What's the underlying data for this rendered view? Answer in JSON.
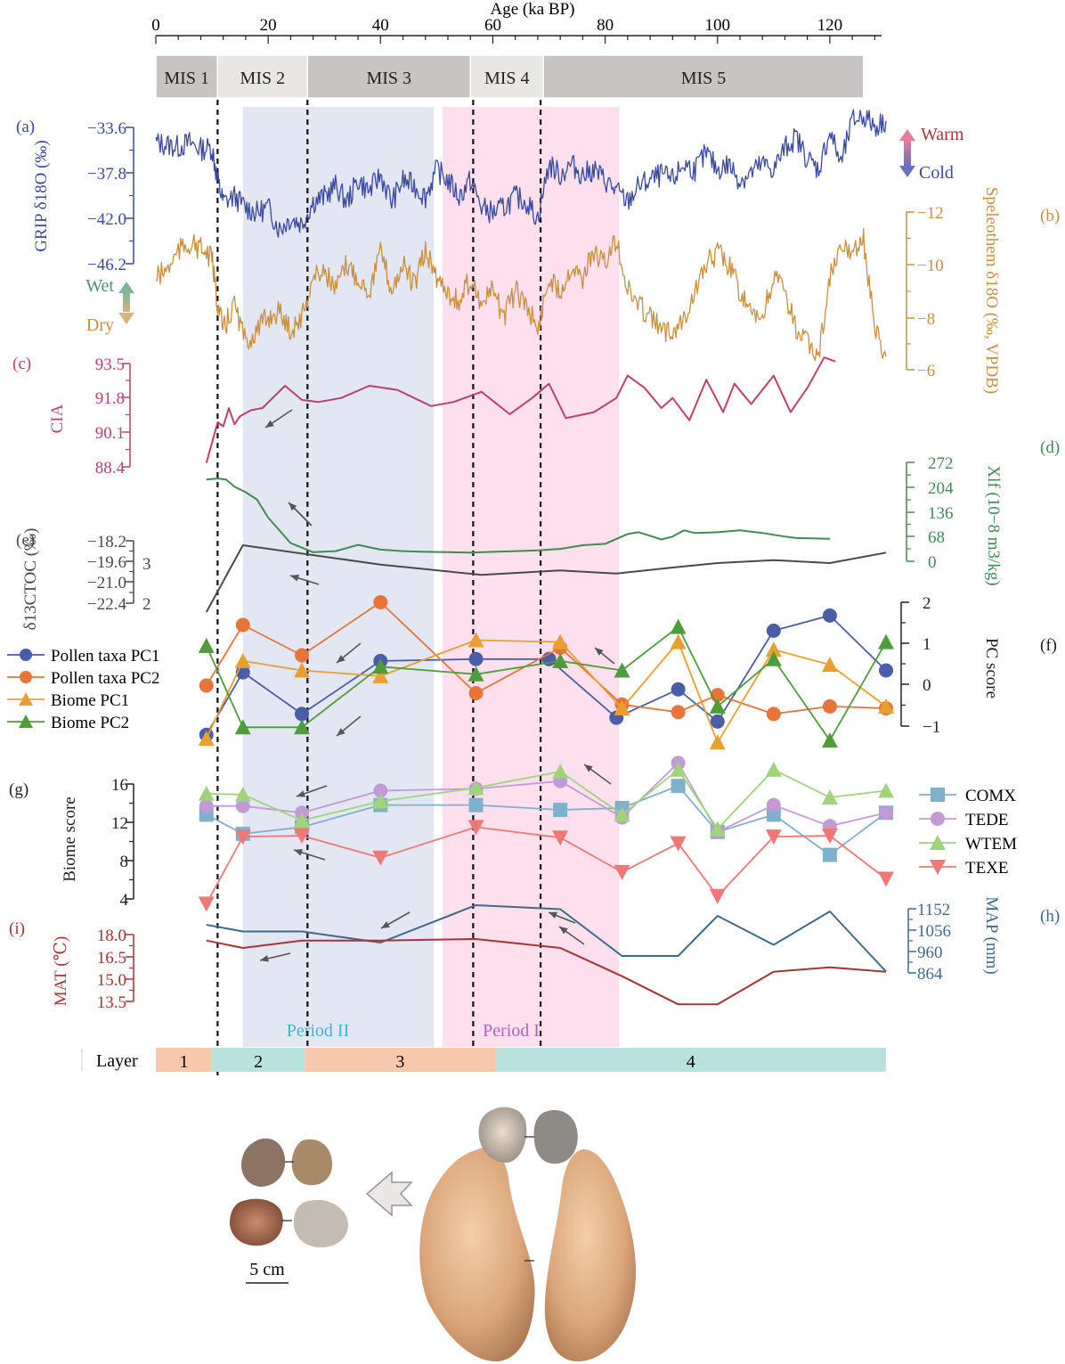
{
  "figure": {
    "age_axis": {
      "label": "Age (ka BP)",
      "ticks": [
        0,
        20,
        40,
        60,
        80,
        100,
        120
      ],
      "range": [
        0,
        130
      ]
    },
    "mis": [
      {
        "label": "MIS 1",
        "from": 0,
        "to": 11,
        "color": "#c8c4c4"
      },
      {
        "label": "MIS 2",
        "from": 11,
        "to": 27,
        "color": "#e9e6e6"
      },
      {
        "label": "MIS 3",
        "from": 27,
        "to": 56,
        "color": "#c8c4c4"
      },
      {
        "label": "MIS 4",
        "from": 56,
        "to": 69,
        "color": "#e9e6e6"
      },
      {
        "label": "MIS 5",
        "from": 69,
        "to": 126,
        "color": "#c8c4c4"
      }
    ],
    "dashed_ages": [
      11,
      27,
      56.5,
      68.5
    ],
    "periods": [
      {
        "label": "Period II",
        "from": 15.5,
        "to": 49.5,
        "color": "#e3e6f3",
        "text_color": "#3fb6d6"
      },
      {
        "label": "Period I",
        "from": 51,
        "to": 82.5,
        "color": "#fce0ee",
        "text_color": "#b066b5"
      }
    ],
    "layers": {
      "title": "Layer",
      "items": [
        {
          "label": "1",
          "from": 0,
          "to": 10,
          "color": "#f8c8ad"
        },
        {
          "label": "2",
          "from": 10,
          "to": 26.5,
          "color": "#b9e2dd"
        },
        {
          "label": "3",
          "from": 26.5,
          "to": 60.5,
          "color": "#f8c8ad"
        },
        {
          "label": "4",
          "from": 60.5,
          "to": 130,
          "color": "#b9e2dd"
        }
      ]
    },
    "warm_cold": {
      "warm": "Warm",
      "cold": "Cold"
    },
    "wet_dry": {
      "wet": "Wet",
      "dry": "Dry"
    },
    "scale_bar": "5 cm"
  },
  "chart_data": [
    {
      "id": "a",
      "panel": "(a)",
      "type": "line",
      "color": "#3a4aa0",
      "ylabel": "GRIP δ18O (‰)",
      "yticks": [
        "−33.6",
        "−37.8",
        "−42.0",
        "−46.2"
      ],
      "ylim": [
        -46.2,
        -33.6
      ],
      "x": [
        0,
        2,
        4,
        6,
        8,
        10,
        11,
        12,
        14,
        16,
        18,
        20,
        22,
        24,
        26,
        28,
        30,
        32,
        34,
        36,
        38,
        40,
        42,
        44,
        46,
        48,
        50,
        52,
        54,
        56,
        58,
        60,
        62,
        64,
        66,
        68,
        70,
        72,
        74,
        76,
        78,
        80,
        82,
        84,
        86,
        88,
        90,
        92,
        94,
        96,
        98,
        100,
        102,
        104,
        106,
        108,
        110,
        112,
        114,
        116,
        118,
        120,
        122,
        124,
        126,
        128,
        130
      ],
      "y": [
        -35.0,
        -35.2,
        -35.4,
        -35.0,
        -35.6,
        -35.5,
        -38.5,
        -40.5,
        -40.0,
        -41.0,
        -41.5,
        -41.0,
        -43.0,
        -42.0,
        -42.5,
        -40.5,
        -40.0,
        -39.0,
        -40.5,
        -38.5,
        -39.5,
        -38.0,
        -40.5,
        -38.5,
        -39.0,
        -40.0,
        -37.5,
        -38.5,
        -40.0,
        -38.5,
        -41.0,
        -41.5,
        -41.0,
        -40.0,
        -40.5,
        -42.0,
        -37.0,
        -38.0,
        -37.0,
        -38.0,
        -37.5,
        -38.5,
        -39.5,
        -40.5,
        -39.0,
        -38.5,
        -38.0,
        -38.5,
        -37.0,
        -37.5,
        -36.0,
        -37.5,
        -37.0,
        -38.5,
        -37.8,
        -37.0,
        -37.5,
        -35.5,
        -34.5,
        -36.5,
        -37.5,
        -34.0,
        -37.0,
        -33.0,
        -32.5,
        -33.5,
        -33.0
      ]
    },
    {
      "id": "b",
      "panel": "(b)",
      "type": "line",
      "color": "#c89040",
      "ylabel": "Speleothem δ18O (‰, VPDB)",
      "yticks": [
        "−12",
        "−10",
        "−8",
        "−6"
      ],
      "ylim": [
        -12,
        -6
      ],
      "reversed": true,
      "x": [
        0,
        2,
        4,
        6,
        8,
        10,
        11,
        12,
        14,
        16,
        18,
        20,
        22,
        24,
        26,
        28,
        30,
        32,
        34,
        36,
        38,
        40,
        42,
        44,
        46,
        48,
        50,
        52,
        54,
        56,
        58,
        60,
        62,
        64,
        66,
        68,
        70,
        72,
        74,
        76,
        78,
        80,
        82,
        84,
        86,
        88,
        90,
        92,
        94,
        96,
        98,
        100,
        102,
        104,
        106,
        108,
        110,
        112,
        114,
        116,
        118,
        120,
        122,
        124,
        126,
        128,
        130
      ],
      "y": [
        -9.5,
        -9.8,
        -10.5,
        -10.8,
        -10.6,
        -10.2,
        -8.5,
        -7.5,
        -8.5,
        -7.0,
        -7.5,
        -8.0,
        -8.2,
        -7.5,
        -8.0,
        -9.5,
        -9.8,
        -9.0,
        -10.0,
        -9.5,
        -9.0,
        -10.5,
        -9.0,
        -10.0,
        -9.2,
        -10.5,
        -9.5,
        -9.0,
        -8.5,
        -9.5,
        -8.5,
        -9.0,
        -8.0,
        -9.0,
        -8.5,
        -7.5,
        -9.5,
        -9.0,
        -10.0,
        -9.5,
        -10.5,
        -10.0,
        -11.0,
        -9.0,
        -8.5,
        -8.0,
        -7.5,
        -7.5,
        -8.0,
        -9.0,
        -10.0,
        -10.5,
        -10.0,
        -9.0,
        -8.0,
        -8.0,
        -9.5,
        -9.0,
        -7.5,
        -7.0,
        -6.5,
        -9.5,
        -10.5,
        -10.5,
        -11.0,
        -7.5,
        -6.5
      ]
    },
    {
      "id": "c",
      "panel": "(c)",
      "type": "line",
      "color": "#c0406a",
      "ylabel": "CIA",
      "yticks": [
        "93.5",
        "91.8",
        "90.1",
        "88.4"
      ],
      "ylim": [
        88.4,
        93.5
      ],
      "x": [
        9,
        11,
        12,
        13,
        14,
        15,
        17,
        19,
        23,
        26,
        29,
        33,
        38,
        43,
        49,
        53,
        58,
        63,
        67,
        70,
        73,
        78,
        82,
        84,
        87,
        90,
        92,
        95,
        98,
        101,
        103,
        106,
        110,
        113,
        116,
        119,
        121
      ],
      "y": [
        88.6,
        90.6,
        90.4,
        91.3,
        90.5,
        90.9,
        91.2,
        91.3,
        92.4,
        91.7,
        91.6,
        91.8,
        92.4,
        92.2,
        91.4,
        91.6,
        92.1,
        91.0,
        91.8,
        92.5,
        90.8,
        91.1,
        91.8,
        92.9,
        92.3,
        91.3,
        91.8,
        90.7,
        92.7,
        91.1,
        92.5,
        91.5,
        92.9,
        91.1,
        92.3,
        93.8,
        93.6
      ]
    },
    {
      "id": "d",
      "panel": "(d)",
      "type": "line",
      "color": "#3f8c55",
      "ylabel": "Xlf (10−8 m3/kg)",
      "yticks": [
        "272",
        "204",
        "136",
        "68",
        "0"
      ],
      "ylim": [
        0,
        272
      ],
      "x": [
        9,
        11,
        12.5,
        14,
        16,
        18,
        20,
        24,
        28,
        32,
        36,
        40,
        44,
        48,
        52,
        56,
        60,
        64,
        68,
        72,
        76,
        80,
        84,
        86,
        88,
        90,
        92,
        94,
        96,
        100,
        104,
        108,
        112,
        114,
        120
      ],
      "y": [
        225,
        228,
        225,
        205,
        190,
        170,
        120,
        50,
        25,
        28,
        45,
        32,
        28,
        26,
        25,
        24,
        26,
        28,
        30,
        34,
        44,
        48,
        75,
        80,
        70,
        60,
        68,
        85,
        78,
        80,
        85,
        78,
        68,
        64,
        62
      ]
    },
    {
      "id": "e",
      "panel": "(e)",
      "type": "line",
      "color": "#4a4a4a",
      "ylabel": "δ13CTOC (‰)",
      "yticks": [
        "−18.2",
        "−19.6",
        "−21.0",
        "−22.4"
      ],
      "ylim": [
        -22.4,
        -18.2
      ],
      "secondary_ticks": [
        "3",
        "2"
      ],
      "x": [
        9,
        15.5,
        40,
        58,
        72,
        82,
        92,
        100,
        110,
        120,
        130
      ],
      "y": [
        -23.0,
        -18.5,
        -19.8,
        -20.5,
        -20.2,
        -20.4,
        -20.0,
        -19.7,
        -19.5,
        -19.7,
        -19.0
      ]
    },
    {
      "id": "f",
      "panel": "(f)",
      "type": "line",
      "ylabel": "PC score",
      "yticks": [
        "2",
        "1",
        "0",
        "−1"
      ],
      "ylim": [
        -1.6,
        2
      ],
      "series": [
        {
          "name": "Pollen taxa PC1",
          "color": "#4a5ea8",
          "marker": "circle",
          "x": [
            9,
            15.5,
            26,
            40,
            57,
            70,
            82,
            93,
            100,
            110,
            120,
            130
          ],
          "y": [
            -1.5,
            0.15,
            -0.95,
            0.45,
            0.5,
            0.5,
            -1.05,
            -0.3,
            -1.15,
            1.25,
            1.65,
            0.2
          ]
        },
        {
          "name": "Pollen taxa PC2",
          "color": "#e8743a",
          "marker": "circle",
          "x": [
            9,
            15.5,
            26,
            40,
            57,
            72,
            83,
            93,
            100,
            110,
            120,
            130
          ],
          "y": [
            -0.2,
            1.4,
            0.6,
            2.0,
            -0.4,
            0.8,
            -0.7,
            -0.9,
            -0.45,
            -0.95,
            -0.75,
            -0.8
          ]
        },
        {
          "name": "Biome PC1",
          "color": "#e8a030",
          "marker": "triangle-up",
          "x": [
            9,
            15.5,
            26,
            40,
            57,
            72,
            83,
            93,
            100,
            110,
            120,
            130
          ],
          "y": [
            -1.6,
            0.45,
            0.2,
            0.05,
            1.0,
            0.95,
            -0.8,
            0.95,
            -1.7,
            0.75,
            0.35,
            -0.75
          ]
        },
        {
          "name": "Biome PC2",
          "color": "#4f9d3a",
          "marker": "triangle-up",
          "x": [
            9,
            15.5,
            26,
            40,
            57,
            72,
            83,
            93,
            100,
            110,
            120,
            130
          ],
          "y": [
            0.85,
            -1.3,
            -1.3,
            0.3,
            0.1,
            0.45,
            0.2,
            1.35,
            -0.75,
            0.5,
            -1.65,
            0.95
          ]
        }
      ]
    },
    {
      "id": "g",
      "panel": "(g)",
      "type": "line",
      "ylabel": "Biome score",
      "yticks": [
        "16",
        "12",
        "8",
        "4"
      ],
      "ylim": [
        4,
        16
      ],
      "series": [
        {
          "name": "COMX",
          "color": "#7fb0cc",
          "marker": "square",
          "x": [
            9,
            15.5,
            26,
            40,
            57,
            72,
            83,
            93,
            100,
            110,
            120,
            130
          ],
          "y": [
            12.8,
            10.8,
            11.5,
            13.8,
            13.8,
            13.3,
            13.5,
            15.8,
            11.0,
            12.8,
            8.6,
            13.0
          ]
        },
        {
          "name": "TEDE",
          "color": "#c29ad4",
          "marker": "circle",
          "x": [
            9,
            15.5,
            26,
            40,
            57,
            72,
            83,
            93,
            100,
            110,
            120,
            130
          ],
          "y": [
            13.7,
            13.7,
            13.0,
            15.3,
            15.5,
            16.3,
            12.5,
            18.2,
            11.0,
            13.8,
            11.6,
            13.0
          ]
        },
        {
          "name": "WTEM",
          "color": "#9fd47a",
          "marker": "triangle-up",
          "x": [
            9,
            15.5,
            26,
            40,
            57,
            72,
            83,
            93,
            100,
            110,
            120,
            130
          ],
          "y": [
            15.0,
            14.9,
            12.2,
            14.2,
            15.6,
            17.3,
            12.8,
            17.5,
            11.3,
            17.5,
            14.6,
            15.3
          ]
        },
        {
          "name": "TEXE",
          "color": "#f07878",
          "marker": "triangle-down",
          "x": [
            9,
            15.5,
            26,
            40,
            57,
            72,
            83,
            93,
            100,
            110,
            120,
            130
          ],
          "y": [
            3.5,
            10.5,
            10.6,
            8.3,
            11.5,
            10.4,
            6.8,
            9.8,
            4.3,
            10.5,
            10.6,
            6.1
          ]
        }
      ]
    },
    {
      "id": "h",
      "panel": "(h)",
      "type": "line",
      "color": "#3f6a8a",
      "ylabel": "MAP (mm)",
      "yticks": [
        "1152",
        "1056",
        "960",
        "864"
      ],
      "ylim": [
        864,
        1152
      ],
      "x": [
        9,
        15.5,
        26,
        40,
        57,
        72,
        83,
        93,
        100,
        110,
        120,
        130
      ],
      "y": [
        1080,
        1050,
        1050,
        1000,
        1168,
        1150,
        940,
        940,
        1120,
        990,
        1140,
        870
      ]
    },
    {
      "id": "i",
      "panel": "(i)",
      "type": "line",
      "color": "#a83434",
      "ylabel": "MAT (℃)",
      "yticks": [
        "18.0",
        "16.5",
        "15.0",
        "13.5"
      ],
      "ylim": [
        13.5,
        18.0
      ],
      "x": [
        9,
        15.5,
        26,
        40,
        57,
        72,
        83,
        93,
        100,
        110,
        120,
        130
      ],
      "y": [
        17.6,
        17.1,
        17.6,
        17.6,
        17.7,
        17.1,
        15.2,
        13.3,
        13.3,
        15.5,
        15.8,
        15.5
      ]
    }
  ]
}
